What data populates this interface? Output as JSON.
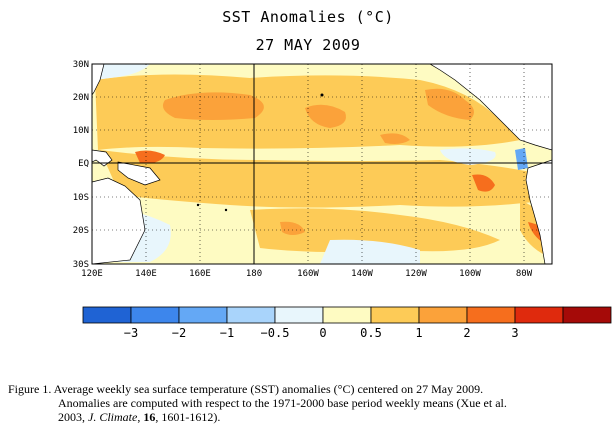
{
  "title": "SST Anomalies (°C)",
  "date": "27 MAY 2009",
  "map": {
    "lon_range": [
      120,
      290
    ],
    "lat_range": [
      -30,
      30
    ],
    "lat_ticks": [
      "30N",
      "20N",
      "10N",
      "EQ",
      "10S",
      "20S",
      "30S"
    ],
    "lon_ticks": [
      "120E",
      "140E",
      "160E",
      "180",
      "160W",
      "140W",
      "120W",
      "100W",
      "80W"
    ],
    "land_color": "#ffffff",
    "equator_and_dateline_lines": true,
    "grid": "dotted"
  },
  "colorbar": {
    "colors": [
      "#1f63d4",
      "#3d86ec",
      "#64a8f5",
      "#a9d4fb",
      "#e8f6fc",
      "#fefbc2",
      "#fdcb57",
      "#fba23a",
      "#f66e1d",
      "#df2a0d",
      "#a50a08"
    ],
    "labels": [
      "−3",
      "−2",
      "−1",
      "−0.5",
      "0",
      "0.5",
      "1",
      "2",
      "3"
    ]
  },
  "caption": {
    "line1": "Figure 1. Average weekly sea surface temperature (SST) anomalies (°C) centered on 27 May 2009.",
    "line2": "Anomalies are computed with respect to the 1971-2000 base period weekly means (Xue et al.",
    "line3_a": "2003, ",
    "line3_journal": "J. Climate",
    "line3_b": ", ",
    "line3_vol": "16",
    "line3_c": ", 1601-1612)."
  }
}
